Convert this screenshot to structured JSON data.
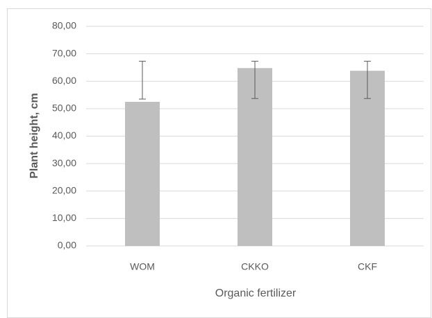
{
  "chart_data": {
    "type": "bar",
    "categories": [
      "WOM",
      "CKKO",
      "CKF"
    ],
    "values": [
      52.5,
      64.8,
      63.8
    ],
    "error_lower": [
      53.5,
      53.7,
      53.7
    ],
    "error_upper": [
      67.3,
      67.3,
      67.3
    ],
    "color": "#bfbfbf",
    "error_color": "#595959",
    "xlabel": "Organic fertilizer",
    "ylabel": "Plant height, cm",
    "ylim": [
      0,
      80
    ],
    "yticks": [
      {
        "value": 0,
        "label": "0,00"
      },
      {
        "value": 10,
        "label": "10,00"
      },
      {
        "value": 20,
        "label": "20,00"
      },
      {
        "value": 30,
        "label": "30,00"
      },
      {
        "value": 40,
        "label": "40,00"
      },
      {
        "value": 50,
        "label": "50,00"
      },
      {
        "value": 60,
        "label": "60,00"
      },
      {
        "value": 70,
        "label": "70,00"
      },
      {
        "value": 80,
        "label": "80,00"
      }
    ],
    "grid": true
  }
}
